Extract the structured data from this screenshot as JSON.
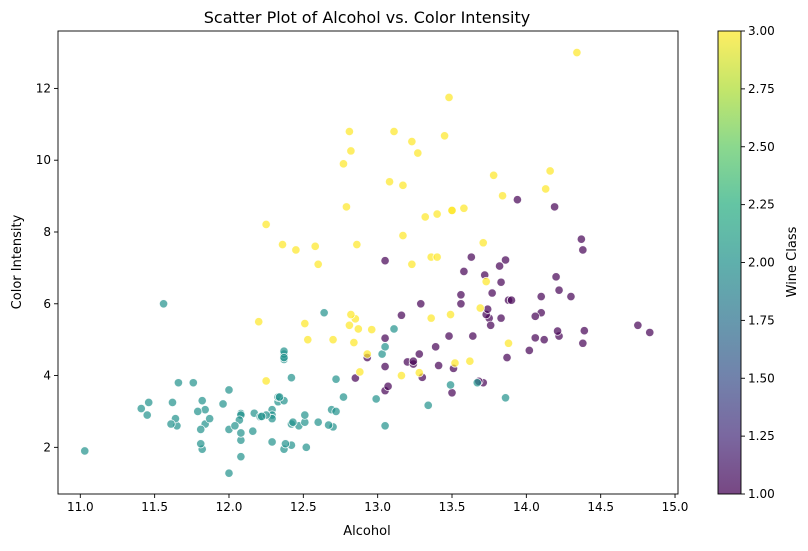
{
  "chart_data": {
    "type": "scatter",
    "title": "Scatter Plot of Alcohol vs. Color Intensity",
    "xlabel": "Alcohol",
    "ylabel": "Color Intensity",
    "xlim": [
      10.85,
      15.02
    ],
    "ylim": [
      0.7,
      13.6
    ],
    "xticks": [
      "11.0",
      "11.5",
      "12.0",
      "12.5",
      "13.0",
      "13.5",
      "14.0",
      "14.5",
      "15.0"
    ],
    "yticks": [
      "2",
      "4",
      "6",
      "8",
      "10",
      "12"
    ],
    "grid": false,
    "colorbar": {
      "label": "Wine Class",
      "range": [
        1.0,
        3.0
      ],
      "ticks": [
        "1.00",
        "1.25",
        "1.50",
        "1.75",
        "2.00",
        "2.25",
        "2.50",
        "2.75",
        "3.00"
      ],
      "colormap": "viridis"
    },
    "colors": {
      "class_1": "#440154",
      "class_2": "#21918c",
      "class_3": "#fde725"
    },
    "point_alpha": 0.7,
    "series": [
      {
        "class": 1,
        "points": [
          [
            13.2,
            4.38
          ],
          [
            13.16,
            5.68
          ],
          [
            14.37,
            7.8
          ],
          [
            13.24,
            4.32
          ],
          [
            14.2,
            6.75
          ],
          [
            14.39,
            5.25
          ],
          [
            14.06,
            5.05
          ],
          [
            14.83,
            5.2
          ],
          [
            13.86,
            7.22
          ],
          [
            14.1,
            5.75
          ],
          [
            14.12,
            5.0
          ],
          [
            13.75,
            5.6
          ],
          [
            14.75,
            5.4
          ],
          [
            14.38,
            7.5
          ],
          [
            13.63,
            7.3
          ],
          [
            14.3,
            6.2
          ],
          [
            13.83,
            6.6
          ],
          [
            14.19,
            8.7
          ],
          [
            13.64,
            5.1
          ],
          [
            14.06,
            5.65
          ],
          [
            12.93,
            4.5
          ],
          [
            13.71,
            3.8
          ],
          [
            12.85,
            3.93
          ],
          [
            13.5,
            3.52
          ],
          [
            13.05,
            3.58
          ],
          [
            13.39,
            4.8
          ],
          [
            13.3,
            3.95
          ],
          [
            13.87,
            4.5
          ],
          [
            14.02,
            4.7
          ],
          [
            13.73,
            5.7
          ],
          [
            13.58,
            6.9
          ],
          [
            13.68,
            3.84
          ],
          [
            13.76,
            5.4
          ],
          [
            13.51,
            4.2
          ],
          [
            13.48,
            5.1
          ],
          [
            13.28,
            4.6
          ],
          [
            13.05,
            4.25
          ],
          [
            13.07,
            3.7
          ],
          [
            14.22,
            5.1
          ],
          [
            13.56,
            6.0
          ],
          [
            13.41,
            4.28
          ],
          [
            13.88,
            6.1
          ],
          [
            13.24,
            4.4
          ],
          [
            13.05,
            5.04
          ],
          [
            14.21,
            5.24
          ],
          [
            14.38,
            4.9
          ],
          [
            13.9,
            6.1
          ],
          [
            14.1,
            6.2
          ],
          [
            13.94,
            8.9
          ],
          [
            13.05,
            7.2
          ],
          [
            13.83,
            5.6
          ],
          [
            13.82,
            7.05
          ],
          [
            13.77,
            6.3
          ],
          [
            13.74,
            5.85
          ],
          [
            13.56,
            6.25
          ],
          [
            14.22,
            6.38
          ],
          [
            13.29,
            6.0
          ],
          [
            13.72,
            6.8
          ]
        ]
      },
      {
        "class": 2,
        "points": [
          [
            12.37,
            1.95
          ],
          [
            12.33,
            3.27
          ],
          [
            12.64,
            5.75
          ],
          [
            13.67,
            3.8
          ],
          [
            12.37,
            4.45
          ],
          [
            12.17,
            2.95
          ],
          [
            12.37,
            4.6
          ],
          [
            13.11,
            5.3
          ],
          [
            12.37,
            4.68
          ],
          [
            13.34,
            3.17
          ],
          [
            12.21,
            2.85
          ],
          [
            12.29,
            3.05
          ],
          [
            13.86,
            3.38
          ],
          [
            13.49,
            3.74
          ],
          [
            12.99,
            3.35
          ],
          [
            11.96,
            3.21
          ],
          [
            11.66,
            3.8
          ],
          [
            13.03,
            4.6
          ],
          [
            11.84,
            2.65
          ],
          [
            12.33,
            3.4
          ],
          [
            12.7,
            2.57
          ],
          [
            12.0,
            2.5
          ],
          [
            12.72,
            3.9
          ],
          [
            12.08,
            2.2
          ],
          [
            13.05,
            4.8
          ],
          [
            11.84,
            3.05
          ],
          [
            12.67,
            2.62
          ],
          [
            12.16,
            2.45
          ],
          [
            11.65,
            2.6
          ],
          [
            11.64,
            2.8
          ],
          [
            12.08,
            1.74
          ],
          [
            12.08,
            2.4
          ],
          [
            12.0,
            3.6
          ],
          [
            12.69,
            3.05
          ],
          [
            12.29,
            2.15
          ],
          [
            11.62,
            3.25
          ],
          [
            12.47,
            2.6
          ],
          [
            11.81,
            2.5
          ],
          [
            12.29,
            2.9
          ],
          [
            12.37,
            3.3
          ],
          [
            12.29,
            2.8
          ],
          [
            12.08,
            2.94
          ],
          [
            12.6,
            2.7
          ],
          [
            12.34,
            3.4
          ],
          [
            11.82,
            3.3
          ],
          [
            12.51,
            2.7
          ],
          [
            12.42,
            2.65
          ],
          [
            12.25,
            2.9
          ],
          [
            12.72,
            3.0
          ],
          [
            12.22,
            2.86
          ],
          [
            11.61,
            2.65
          ],
          [
            11.46,
            3.25
          ],
          [
            12.52,
            2.0
          ],
          [
            11.76,
            3.8
          ],
          [
            11.41,
            3.08
          ],
          [
            12.08,
            2.9
          ],
          [
            11.03,
            1.9
          ],
          [
            11.82,
            1.95
          ],
          [
            12.42,
            2.06
          ],
          [
            12.77,
            3.4
          ],
          [
            12.0,
            1.28
          ],
          [
            11.45,
            2.9
          ],
          [
            11.56,
            6.0
          ],
          [
            12.42,
            3.94
          ],
          [
            13.05,
            2.6
          ],
          [
            11.87,
            2.8
          ],
          [
            12.07,
            2.76
          ],
          [
            12.43,
            2.7
          ],
          [
            11.79,
            3.0
          ],
          [
            12.37,
            4.5
          ],
          [
            12.04,
            2.6
          ],
          [
            12.38,
            2.1
          ],
          [
            12.51,
            2.9
          ],
          [
            11.81,
            2.1
          ]
        ]
      },
      {
        "class": 3,
        "points": [
          [
            12.86,
            7.65
          ],
          [
            12.88,
            4.1
          ],
          [
            12.81,
            5.4
          ],
          [
            12.7,
            5.0
          ],
          [
            12.51,
            5.45
          ],
          [
            12.6,
            7.1
          ],
          [
            12.25,
            3.85
          ],
          [
            12.53,
            5.0
          ],
          [
            13.49,
            5.7
          ],
          [
            12.84,
            4.92
          ],
          [
            12.93,
            4.6
          ],
          [
            13.36,
            5.6
          ],
          [
            13.52,
            4.35
          ],
          [
            13.62,
            4.4
          ],
          [
            12.25,
            8.21
          ],
          [
            13.16,
            4.0
          ],
          [
            13.88,
            4.9
          ],
          [
            12.87,
            5.3
          ],
          [
            13.32,
            8.42
          ],
          [
            13.08,
            9.4
          ],
          [
            13.5,
            8.6
          ],
          [
            12.79,
            8.7
          ],
          [
            13.11,
            10.8
          ],
          [
            13.23,
            7.1
          ],
          [
            12.58,
            7.6
          ],
          [
            13.17,
            7.9
          ],
          [
            13.84,
            9.01
          ],
          [
            12.45,
            7.5
          ],
          [
            14.34,
            13.0
          ],
          [
            13.48,
            11.75
          ],
          [
            13.36,
            7.3
          ],
          [
            13.69,
            5.88
          ],
          [
            12.85,
            5.58
          ],
          [
            12.96,
            5.28
          ],
          [
            13.78,
            9.58
          ],
          [
            13.73,
            6.62
          ],
          [
            13.45,
            10.68
          ],
          [
            12.82,
            10.26
          ],
          [
            13.58,
            8.66
          ],
          [
            13.4,
            8.5
          ],
          [
            12.2,
            5.5
          ],
          [
            12.77,
            9.899
          ],
          [
            14.16,
            9.7
          ],
          [
            13.71,
            7.7
          ],
          [
            13.4,
            7.3
          ],
          [
            13.27,
            10.2
          ],
          [
            13.17,
            9.3
          ],
          [
            14.13,
            9.2
          ],
          [
            12.36,
            7.65
          ],
          [
            12.81,
            10.8
          ],
          [
            13.23,
            10.52
          ],
          [
            12.82,
            5.7
          ],
          [
            13.28,
            4.08
          ],
          [
            13.5,
            8.6
          ]
        ]
      }
    ]
  }
}
